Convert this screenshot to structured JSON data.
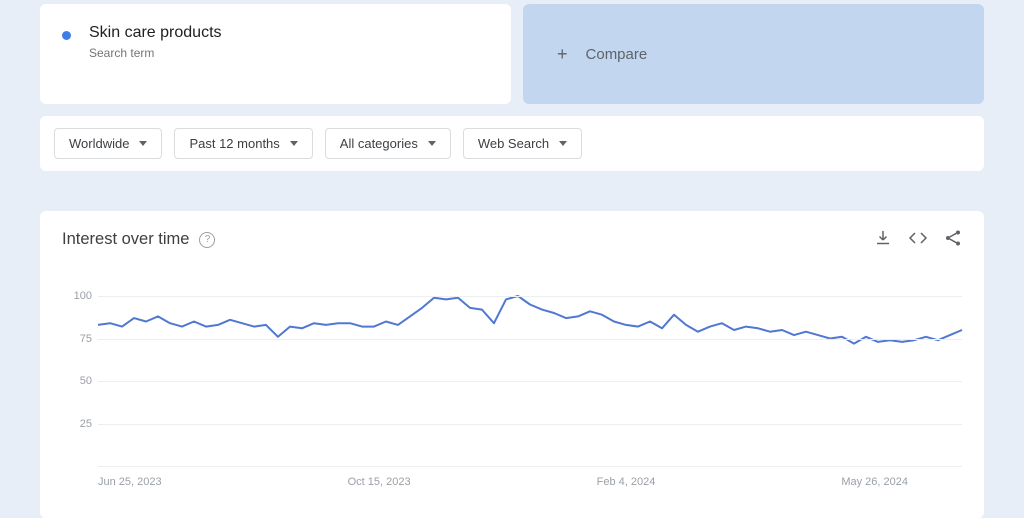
{
  "colors": {
    "page_bg": "#e8eef7",
    "card_bg": "#ffffff",
    "compare_bg": "#c2d6f0",
    "text_primary": "#202124",
    "text_secondary": "#757575",
    "text_muted": "#9aa0a6",
    "chip_border": "#dadce0",
    "grid": "#eceef0",
    "series": "#5078d1",
    "accent_dot": "#3f7ee8"
  },
  "term": {
    "title": "Skin care products",
    "subtitle": "Search term"
  },
  "compare": {
    "label": "Compare"
  },
  "filters": {
    "region": "Worldwide",
    "timerange": "Past 12 months",
    "category": "All categories",
    "search_type": "Web Search"
  },
  "chart": {
    "title": "Interest over time",
    "type": "line",
    "ylim": [
      0,
      100
    ],
    "yticks": [
      25,
      50,
      75,
      100
    ],
    "line_width": 2,
    "series_color": "#5078d1",
    "grid_color": "#eceef0",
    "background_color": "#ffffff",
    "label_fontsize": 11,
    "title_fontsize": 16.5,
    "x_tick_labels": [
      "Jun 25, 2023",
      "Oct 15, 2023",
      "Feb 4, 2024",
      "May 26, 2024"
    ],
    "values": [
      83,
      84,
      82,
      87,
      85,
      88,
      84,
      82,
      85,
      82,
      83,
      86,
      84,
      82,
      83,
      76,
      82,
      81,
      84,
      83,
      84,
      84,
      82,
      82,
      85,
      83,
      88,
      93,
      99,
      98,
      99,
      93,
      92,
      84,
      98,
      100,
      95,
      92,
      90,
      87,
      88,
      91,
      89,
      85,
      83,
      82,
      85,
      81,
      89,
      83,
      79,
      82,
      84,
      80,
      82,
      81,
      79,
      80,
      77,
      79,
      77,
      75,
      76,
      72,
      76,
      73,
      74,
      73,
      74,
      76,
      74,
      77,
      80
    ]
  }
}
